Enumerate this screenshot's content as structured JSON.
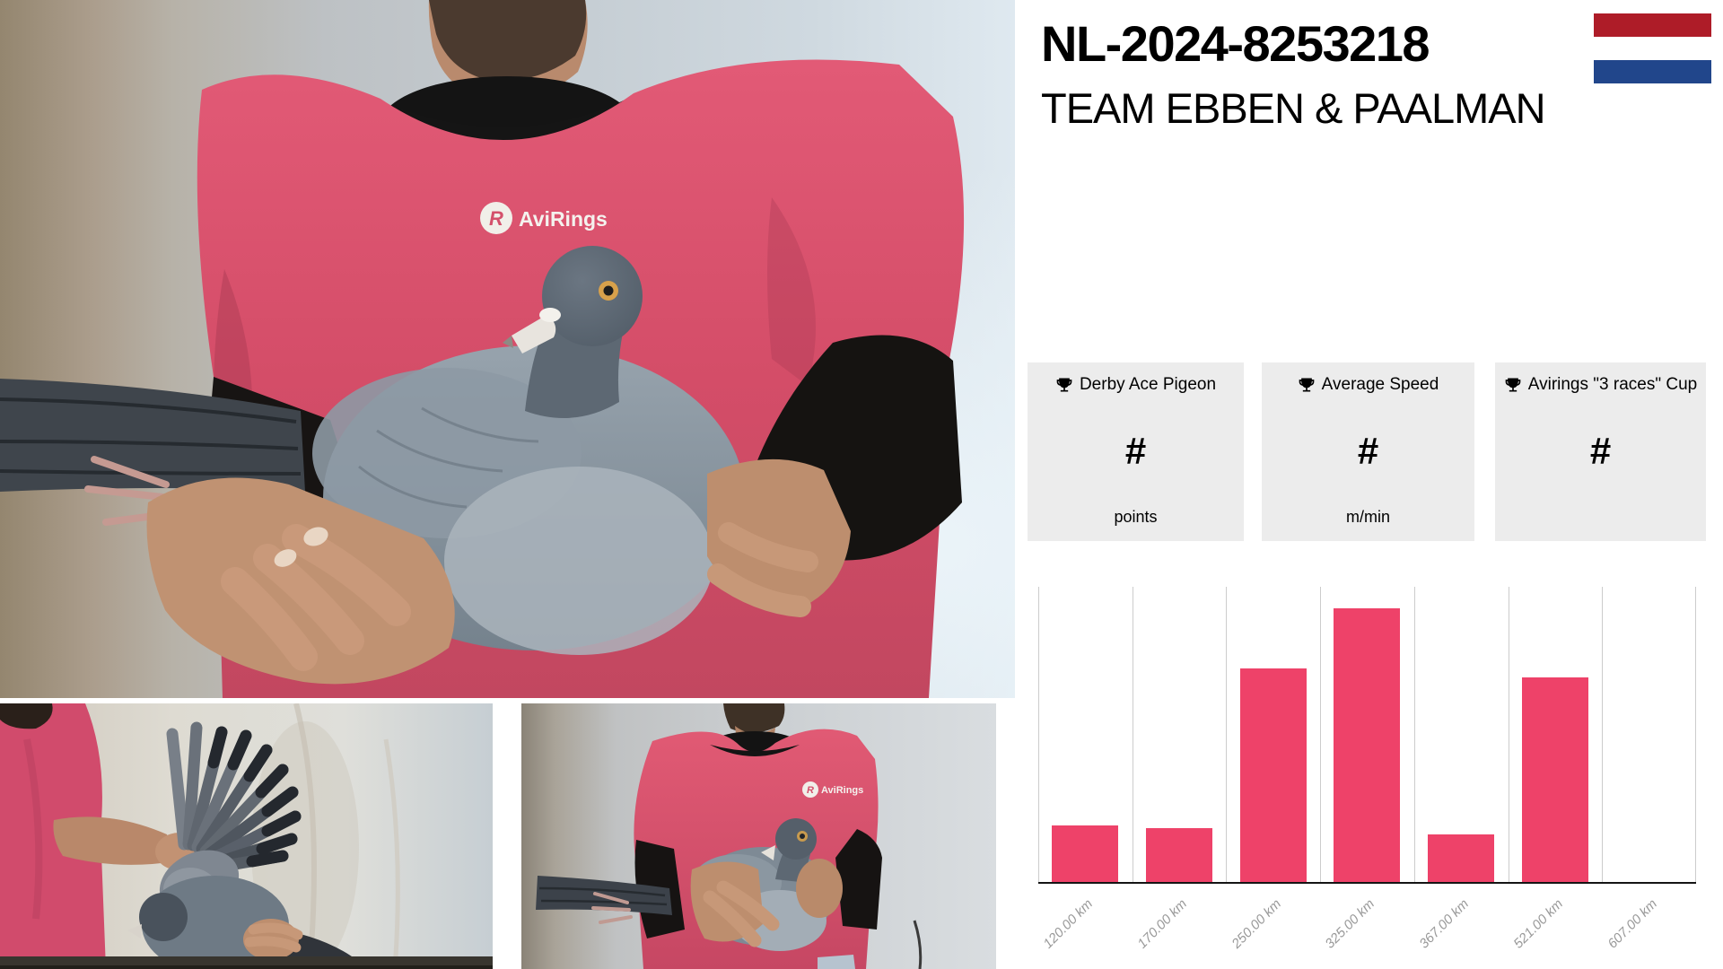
{
  "header": {
    "ring_number": "NL-2024-8253218",
    "team_name": "TEAM EBBEN & PAALMAN"
  },
  "brand": {
    "logo_text": "AviRings"
  },
  "flag": {
    "country": "Netherlands",
    "red": "#ae1c28",
    "white": "#ffffff",
    "blue": "#21468b"
  },
  "stat_cards": [
    {
      "label": "Derby Ace Pigeon",
      "value": "#",
      "unit": "points"
    },
    {
      "label": "Average Speed",
      "value": "#",
      "unit": "m/min"
    },
    {
      "label": "Avirings \"3 races\" Cup",
      "value": "#",
      "unit": ""
    }
  ],
  "chart_data": {
    "type": "bar",
    "categories": [
      "120.00 km",
      "170.00 km",
      "250.00 km",
      "325.00 km",
      "367.00 km",
      "521.00 km",
      "607.00 km"
    ],
    "values": [
      19,
      18,
      72,
      92,
      16,
      69,
      0
    ],
    "title": "",
    "xlabel": "",
    "ylabel": "",
    "ylim": [
      0,
      100
    ],
    "y_axis_labels_visible": false,
    "grid": "vertical-only",
    "legend": "none",
    "bar_color": "#ee4269",
    "note": "no y-axis scale shown; values estimated as percent of plot height"
  },
  "colors": {
    "bar": "#ee4269",
    "gridline": "#cccccc",
    "axis": "#141414",
    "tick_label": "#999999",
    "card_bg": "#ececec",
    "shirt_pink": "#d8506e"
  }
}
